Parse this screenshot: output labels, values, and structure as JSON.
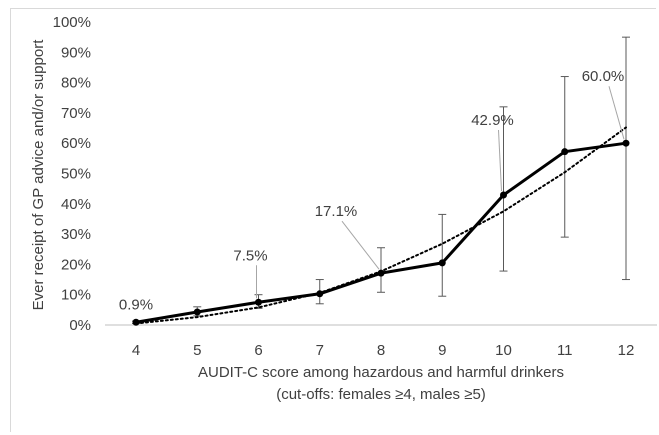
{
  "chart_data": {
    "type": "line",
    "title": "",
    "xlabel": "AUDIT-C score among hazardous and harmful drinkers",
    "xlabel_line2": "(cut-offs: females ≥4, males ≥5)",
    "ylabel": "Ever receipt of GP advice and/or support",
    "x": [
      4,
      5,
      6,
      7,
      8,
      9,
      10,
      11,
      12
    ],
    "ylim": [
      0,
      100
    ],
    "y_unit": "%",
    "y_ticks": [
      0,
      10,
      20,
      30,
      40,
      50,
      60,
      70,
      80,
      90,
      100
    ],
    "y_tick_labels": [
      "0%",
      "10%",
      "20%",
      "30%",
      "40%",
      "50%",
      "60%",
      "70%",
      "80%",
      "90%",
      "100%"
    ],
    "x_tick_labels": [
      "4",
      "5",
      "6",
      "7",
      "8",
      "9",
      "10",
      "11",
      "12"
    ],
    "grid": false,
    "legend": "none",
    "series": [
      {
        "values": [
          0.9,
          4.3,
          7.5,
          10.3,
          17.1,
          20.5,
          42.9,
          57.2,
          60.0
        ],
        "error_low": [
          0.5,
          3.0,
          5.5,
          7.0,
          10.8,
          9.5,
          17.8,
          29.0,
          15.0
        ],
        "error_high": [
          1.3,
          6.0,
          10.0,
          15.0,
          25.5,
          36.5,
          72.0,
          82.0,
          95.0
        ],
        "color": "#000000",
        "style": "solid"
      },
      {
        "type": "trendline",
        "values": [
          0.5,
          2.6,
          5.8,
          10.6,
          17.7,
          26.8,
          37.5,
          50.4,
          65.2
        ],
        "color": "#000000",
        "style": "dotted"
      }
    ],
    "data_labels": [
      {
        "x": 4,
        "text": "0.9%"
      },
      {
        "x": 6,
        "text": "7.5%"
      },
      {
        "x": 8,
        "text": "17.1%"
      },
      {
        "x": 10,
        "text": "42.9%"
      },
      {
        "x": 12,
        "text": "60.0%"
      }
    ]
  }
}
